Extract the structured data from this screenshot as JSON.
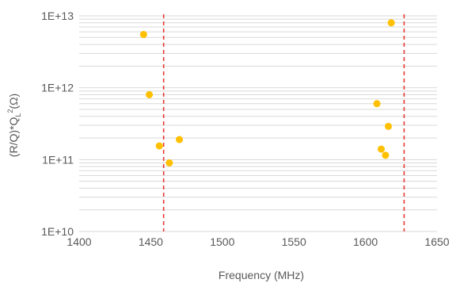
{
  "chart_data": {
    "type": "scatter",
    "title": "",
    "xlabel": "Frequency (MHz)",
    "ylabel": {
      "prefix": "(R/Q)*Q",
      "sub": "L",
      "sup": "2",
      "suffix": "(Ω)"
    },
    "xlim": [
      1400,
      1650
    ],
    "ylim": [
      10000000000.0,
      10000000000000.0
    ],
    "yscale": "log",
    "grid": true,
    "x_ticks": [
      1400,
      1450,
      1500,
      1550,
      1600,
      1650
    ],
    "x_tick_labels": [
      "1400",
      "1450",
      "1500",
      "1550",
      "1600",
      "1650"
    ],
    "y_ticks": [
      10000000000.0,
      100000000000.0,
      1000000000000.0,
      10000000000000.0
    ],
    "y_tick_labels": [
      "1E+10",
      "1E+11",
      "1E+12",
      "1E+13"
    ],
    "points": [
      {
        "x": 1445,
        "y": 5500000000000.0
      },
      {
        "x": 1449,
        "y": 800000000000.0
      },
      {
        "x": 1456,
        "y": 155000000000.0
      },
      {
        "x": 1463,
        "y": 90000000000.0
      },
      {
        "x": 1470,
        "y": 190000000000.0
      },
      {
        "x": 1608,
        "y": 600000000000.0
      },
      {
        "x": 1611,
        "y": 140000000000.0
      },
      {
        "x": 1614,
        "y": 115000000000.0
      },
      {
        "x": 1616,
        "y": 290000000000.0
      },
      {
        "x": 1618,
        "y": 8000000000000.0
      }
    ],
    "vlines": [
      1459,
      1627
    ],
    "colors": {
      "points": "#FFC000",
      "vlines": "#E53935",
      "grid": "#D9D9D9",
      "text": "#595959"
    }
  }
}
